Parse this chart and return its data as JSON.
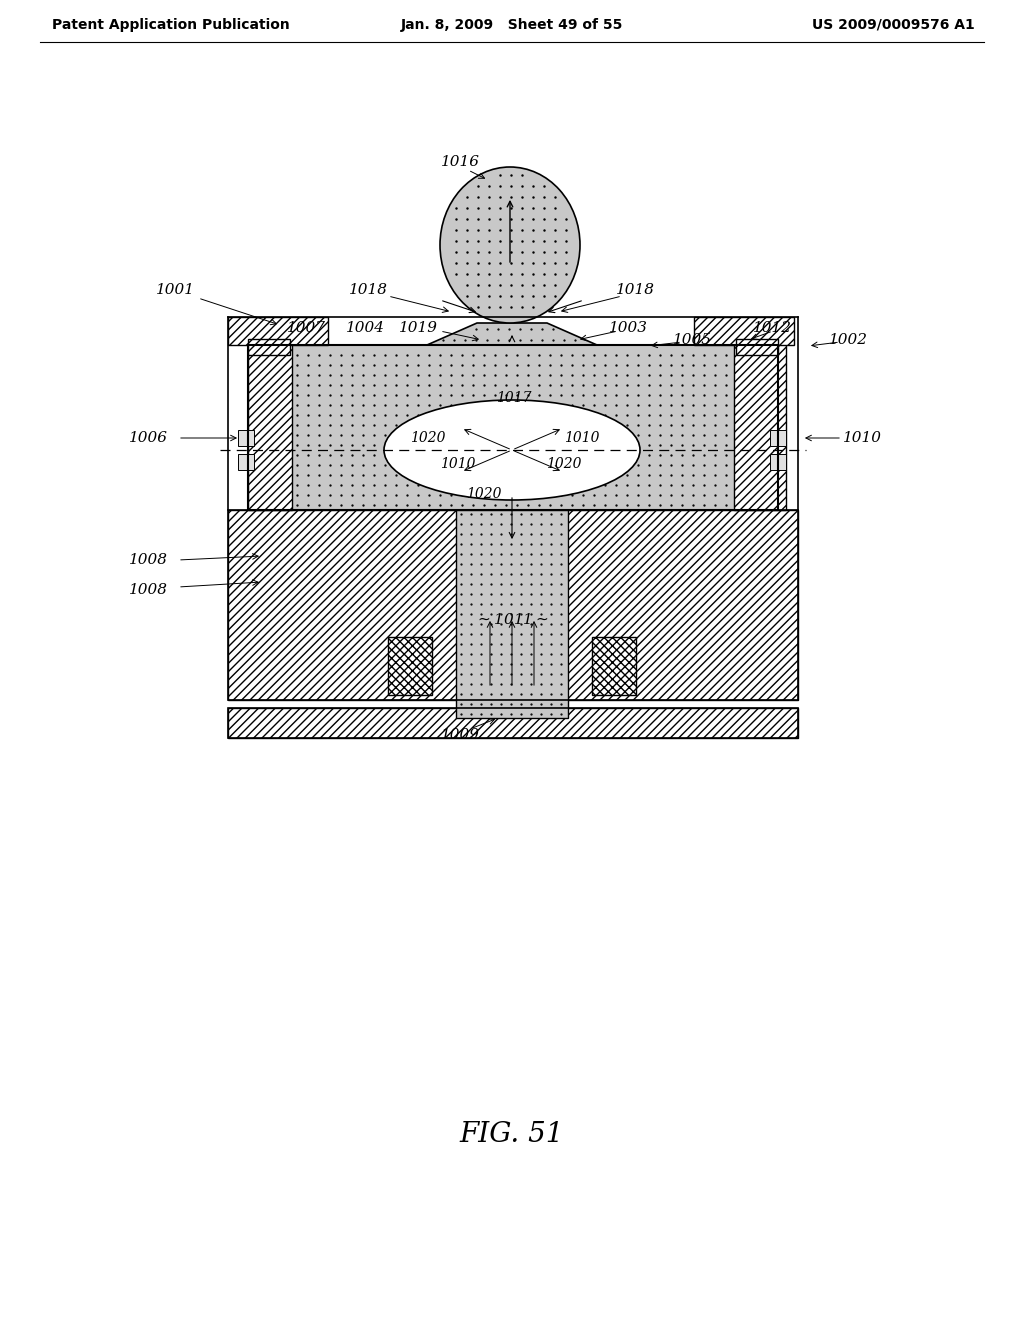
{
  "header_left": "Patent Application Publication",
  "header_center": "Jan. 8, 2009   Sheet 49 of 55",
  "header_right": "US 2009/0009576 A1",
  "fig_label": "FIG. 51",
  "bg": "#ffffff"
}
